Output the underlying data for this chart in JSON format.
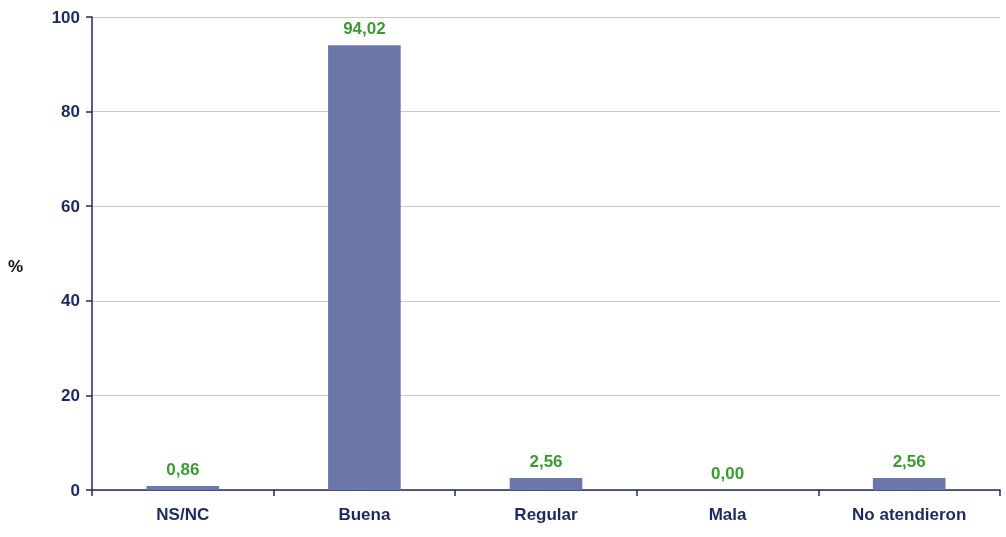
{
  "chart_data": {
    "type": "bar",
    "ylabel": "%",
    "categories": [
      "NS/NC",
      "Buena",
      "Regular",
      "Mala",
      "No atendieron"
    ],
    "values": [
      0.86,
      94.02,
      2.56,
      0.0,
      2.56
    ],
    "value_labels": [
      "0,86",
      "94,02",
      "2,56",
      "0,00",
      "2,56"
    ],
    "color": "#6c77a9",
    "ylim": [
      0,
      100
    ],
    "yticks": [
      0,
      20,
      40,
      60,
      80,
      100
    ],
    "grid": "y"
  }
}
